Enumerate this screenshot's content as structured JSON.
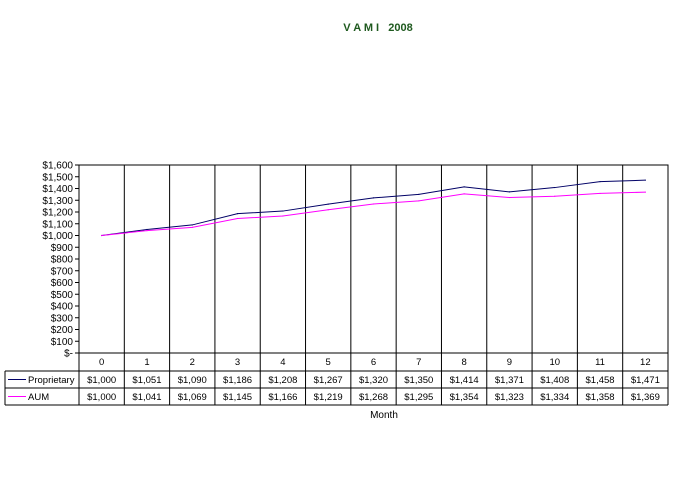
{
  "chart_data": {
    "type": "line",
    "title": "V A M I   2008",
    "xlabel": "Month",
    "ylabel": "",
    "categories": [
      "0",
      "1",
      "2",
      "3",
      "4",
      "5",
      "6",
      "7",
      "8",
      "9",
      "10",
      "11",
      "12"
    ],
    "ylim": [
      0,
      1600
    ],
    "ytick_step": 100,
    "ytick_labels": [
      "$-",
      "$100",
      "$200",
      "$300",
      "$400",
      "$500",
      "$600",
      "$700",
      "$800",
      "$900",
      "$1,000",
      "$1,100",
      "$1,200",
      "$1,300",
      "$1,400",
      "$1,500",
      "$1,600"
    ],
    "grid": "vertical",
    "legend_position": "data-table",
    "series": [
      {
        "name": "Proprietary",
        "color": "#000066",
        "values": [
          1000,
          1051,
          1090,
          1186,
          1208,
          1267,
          1320,
          1350,
          1414,
          1371,
          1408,
          1458,
          1471
        ],
        "labels": [
          "$1,000",
          "$1,051",
          "$1,090",
          "$1,186",
          "$1,208",
          "$1,267",
          "$1,320",
          "$1,350",
          "$1,414",
          "$1,371",
          "$1,408",
          "$1,458",
          "$1,471"
        ]
      },
      {
        "name": "AUM",
        "color": "#ff00ff",
        "values": [
          1000,
          1041,
          1069,
          1145,
          1166,
          1219,
          1268,
          1295,
          1354,
          1323,
          1334,
          1358,
          1369
        ],
        "labels": [
          "$1,000",
          "$1,041",
          "$1,069",
          "$1,145",
          "$1,166",
          "$1,219",
          "$1,268",
          "$1,295",
          "$1,354",
          "$1,323",
          "$1,334",
          "$1,358",
          "$1,369"
        ]
      }
    ]
  }
}
